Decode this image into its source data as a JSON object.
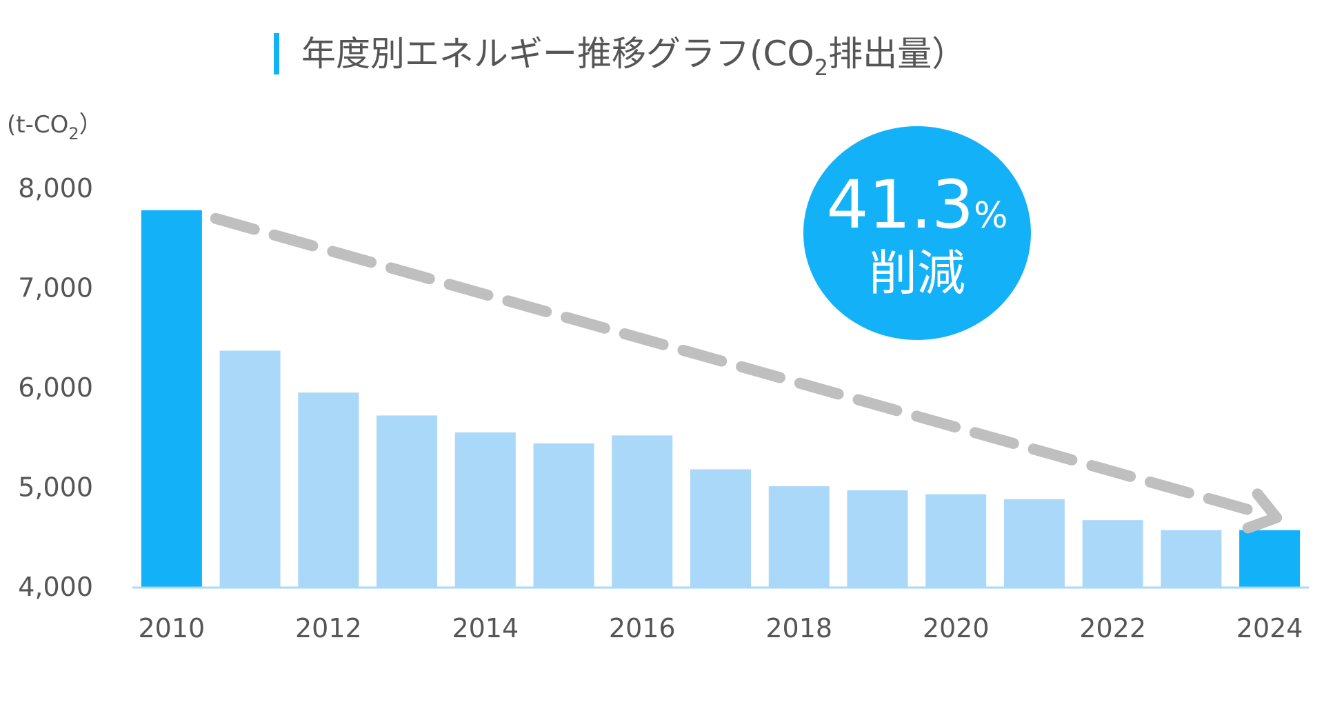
{
  "title": {
    "before_sub": "年度別エネルギー推移グラフ(CO",
    "subscript": "2",
    "after_sub": "排出量）"
  },
  "unit": {
    "before_sub": "(t-CO",
    "subscript": "2",
    "after_sub": "）"
  },
  "badge": {
    "percent_value": "41.3",
    "percent_sign": "%",
    "label": "削減"
  },
  "colors": {
    "highlight_bar": "#13b1f7",
    "normal_bar": "#aad8f8",
    "badge_fill": "#13b1f7",
    "trend_arrow": "#bfbfbf",
    "axis_line": "#aad8f8",
    "title_accent": "#13b1f7"
  },
  "chart_data": {
    "type": "bar",
    "title": "年度別エネルギー推移グラフ(CO2排出量）",
    "ylabel": "(t-CO2）",
    "xlabel": "",
    "ylim": [
      4000,
      8000
    ],
    "yticks": [
      4000,
      5000,
      6000,
      7000,
      8000
    ],
    "ytick_labels": [
      "4,000",
      "5,000",
      "6,000",
      "7,000",
      "8,000"
    ],
    "categories": [
      "2010",
      "2011",
      "2012",
      "2013",
      "2014",
      "2015",
      "2016",
      "2017",
      "2018",
      "2019",
      "2020",
      "2021",
      "2022",
      "2023",
      "2024"
    ],
    "xtick_labels": [
      "2010",
      "2012",
      "2014",
      "2016",
      "2018",
      "2020",
      "2022",
      "2024"
    ],
    "values": [
      7780,
      6370,
      5950,
      5720,
      5550,
      5440,
      5520,
      5180,
      5010,
      4970,
      4930,
      4880,
      4670,
      4570,
      4570
    ],
    "highlighted": [
      "2010",
      "2024"
    ],
    "grid": false,
    "annotation": "41.3% 削減",
    "trend_arrow": {
      "from": "2010",
      "to": "2024"
    }
  }
}
